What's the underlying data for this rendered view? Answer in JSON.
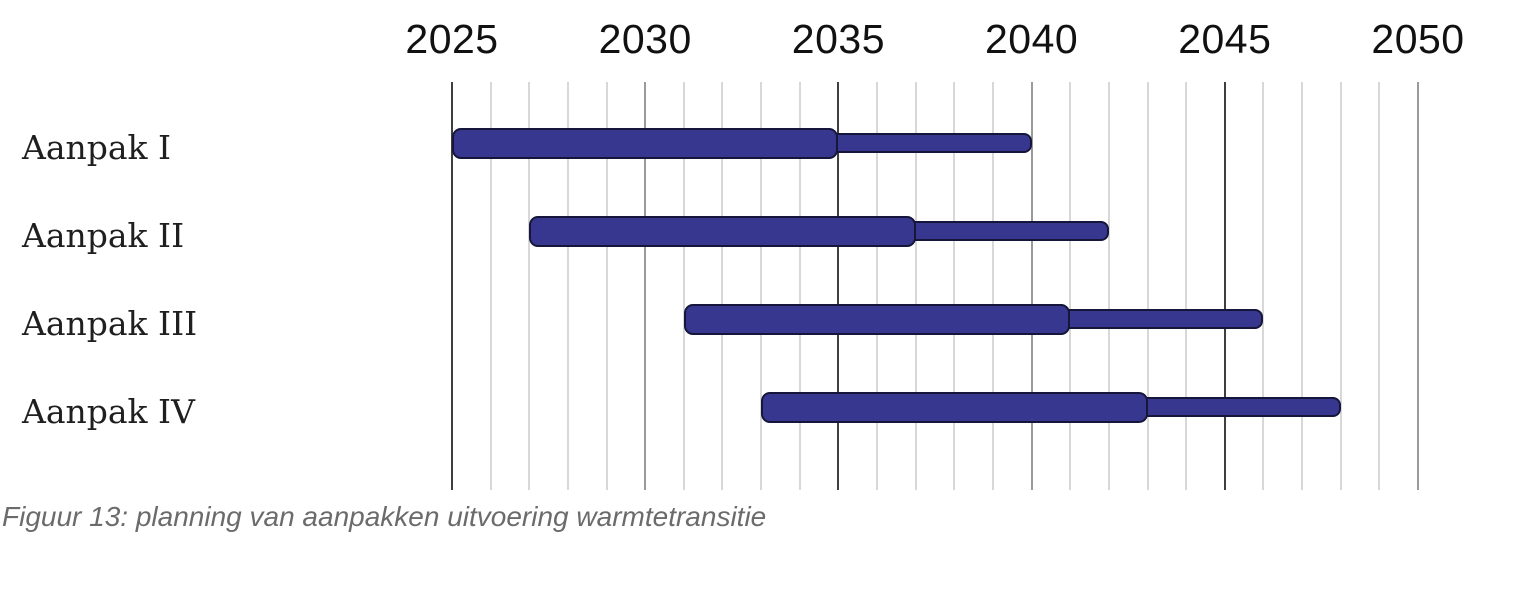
{
  "caption": "Figuur 13: planning van aanpakken uitvoering warmtetransitie",
  "chart_data": {
    "type": "gantt",
    "title": "",
    "x_axis": {
      "min": 2025,
      "max": 2050,
      "major_tick_interval": 5,
      "minor_tick_interval": 1,
      "tick_labels": [
        "2025",
        "2030",
        "2035",
        "2040",
        "2045",
        "2050"
      ],
      "decade_lines": [
        2025,
        2035,
        2045
      ],
      "mid_lines": [
        2030,
        2040,
        2050
      ]
    },
    "categories": [
      "Aanpak I",
      "Aanpak II",
      "Aanpak III",
      "Aanpak IV"
    ],
    "rows": [
      {
        "label": "Aanpak I",
        "core_start": 2025,
        "core_end": 2035,
        "extension_end": 2040
      },
      {
        "label": "Aanpak II",
        "core_start": 2027,
        "core_end": 2037,
        "extension_end": 2042
      },
      {
        "label": "Aanpak III",
        "core_start": 2031,
        "core_end": 2041,
        "extension_end": 2046
      },
      {
        "label": "Aanpak IV",
        "core_start": 2033,
        "core_end": 2043,
        "extension_end": 2048
      }
    ],
    "legend": null,
    "grid": "vertical-yearly",
    "colors": {
      "bar_fill": "#37378f",
      "bar_border": "#16163a",
      "grid_minor": "#d8d8d8",
      "grid_mid": "#9a9a9a",
      "grid_major": "#3f3f3f",
      "tick_label": "#111111",
      "row_label": "#1f1f1f",
      "caption": "#6b6b6b"
    }
  }
}
